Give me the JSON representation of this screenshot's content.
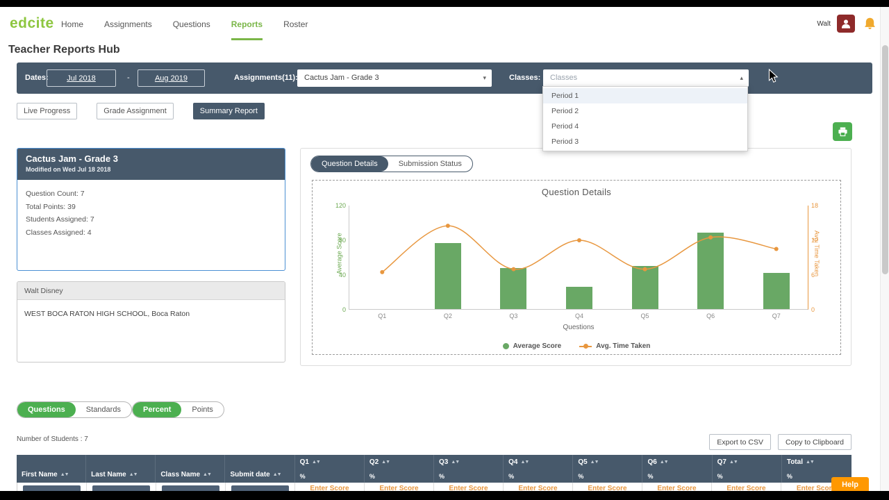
{
  "brand": {
    "logo": "edcite"
  },
  "nav": {
    "items": [
      {
        "label": "Home",
        "active": false
      },
      {
        "label": "Assignments",
        "active": false
      },
      {
        "label": "Questions",
        "active": false
      },
      {
        "label": "Reports",
        "active": true
      },
      {
        "label": "Roster",
        "active": false
      }
    ],
    "user_name": "Walt"
  },
  "page": {
    "title": "Teacher Reports Hub"
  },
  "icons": {
    "sort": "▲▼",
    "caret_down": "▾",
    "caret_up": "▴"
  },
  "filters": {
    "dates_label": "Dates:",
    "date_from": "Jul 2018",
    "date_separator": "-",
    "date_to": "Aug 2019",
    "assignments_label": "Assignments(11):",
    "assignment_selected": "Cactus Jam - Grade 3",
    "classes_label": "Classes:",
    "classes_placeholder": "Classes",
    "classes_options": [
      "Period 1",
      "Period 2",
      "Period 4",
      "Period 3"
    ]
  },
  "tabs": [
    {
      "label": "Live Progress",
      "active": false
    },
    {
      "label": "Grade Assignment",
      "active": false
    },
    {
      "label": "Summary Report",
      "active": true
    }
  ],
  "assignment_card": {
    "title": "Cactus Jam - Grade 3",
    "modified": "Modified on Wed Jul 18 2018",
    "stats": [
      "Question Count: 7",
      "Total Points: 39",
      "Students Assigned: 7",
      "Classes Assigned: 4"
    ]
  },
  "teacher_card": {
    "name": "Walt Disney",
    "school": "WEST BOCA RATON HIGH SCHOOL, Boca Raton"
  },
  "report_toggle": [
    {
      "label": "Question Details",
      "active": true
    },
    {
      "label": "Submission Status",
      "active": false
    }
  ],
  "chart_data": {
    "type": "bar",
    "title": "Question Details",
    "categories": [
      "Q1",
      "Q2",
      "Q3",
      "Q4",
      "Q5",
      "Q6",
      "Q7"
    ],
    "series": [
      {
        "name": "Average Score",
        "type": "bar",
        "axis": "left",
        "color": "#69a865",
        "values": [
          0,
          76,
          47,
          26,
          50,
          88,
          42
        ]
      },
      {
        "name": "Avg. Time Taken",
        "type": "line",
        "axis": "right",
        "color": "#e8973f",
        "values": [
          6.5,
          14.5,
          7,
          12,
          7,
          12.5,
          10.5
        ]
      }
    ],
    "xlabel": "Questions",
    "left_axis": {
      "label": "Average Score",
      "min": 0,
      "max": 120,
      "ticks": [
        0,
        40,
        80,
        120
      ],
      "color": "#6aa84f"
    },
    "right_axis": {
      "label": "Avg. Time Taken",
      "min": 0,
      "max": 18,
      "ticks": [
        0,
        6,
        12,
        18
      ],
      "color": "#e8973f"
    },
    "legend_position": "bottom",
    "grid": false
  },
  "bottom": {
    "question_toggle": [
      {
        "label": "Questions",
        "active": true
      },
      {
        "label": "Standards",
        "active": false
      }
    ],
    "score_toggle": [
      {
        "label": "Percent",
        "active": true
      },
      {
        "label": "Points",
        "active": false
      }
    ],
    "students_count": "Number of Students : 7",
    "export_csv": "Export to CSV",
    "copy_clipboard": "Copy to Clipboard"
  },
  "table": {
    "columns": [
      {
        "label": "First Name",
        "sortable": true
      },
      {
        "label": "Last Name",
        "sortable": true
      },
      {
        "label": "Class Name",
        "sortable": true
      },
      {
        "label": "Submit date",
        "sortable": true
      },
      {
        "label": "Q1",
        "sub": "%",
        "sortable": true,
        "enter": "Enter Score"
      },
      {
        "label": "Q2",
        "sub": "%",
        "sortable": true,
        "enter": "Enter Score"
      },
      {
        "label": "Q3",
        "sub": "%",
        "sortable": true,
        "enter": "Enter Score"
      },
      {
        "label": "Q4",
        "sub": "%",
        "sortable": true,
        "enter": "Enter Score"
      },
      {
        "label": "Q5",
        "sub": "%",
        "sortable": true,
        "enter": "Enter Score"
      },
      {
        "label": "Q6",
        "sub": "%",
        "sortable": true,
        "enter": "Enter Score"
      },
      {
        "label": "Q7",
        "sub": "%",
        "sortable": true,
        "enter": "Enter Score"
      },
      {
        "label": "Total",
        "sub": "%",
        "sortable": true,
        "enter": "Enter Score"
      }
    ]
  },
  "help_button": "Help",
  "colors": {
    "slate": "#47596b",
    "brand_green": "#8dc63f",
    "accent_green": "#4caf50",
    "bar_green": "#69a865",
    "line_orange": "#e8973f",
    "help_orange": "#ff9800",
    "avatar_maroon": "#8e2a2a",
    "bell_amber": "#f0a92d"
  }
}
